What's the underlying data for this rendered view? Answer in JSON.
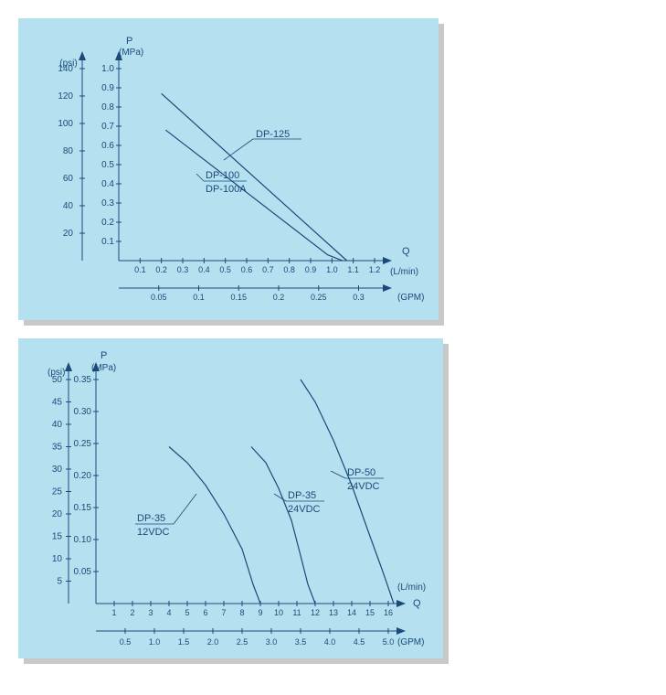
{
  "chart1": {
    "type": "line",
    "background_color": "#b4e0f0",
    "line_color": "#1a4a7a",
    "text_color": "#1a4a7a",
    "font_size_axis": 10,
    "font_size_label": 11,
    "y1_label_top": "(psi)",
    "y1_ticks": [
      20,
      40,
      60,
      80,
      100,
      120,
      140
    ],
    "y2_label_top1": "P",
    "y2_label_top2": "(MPa)",
    "y2_ticks": [
      0.1,
      0.2,
      0.3,
      0.4,
      0.5,
      0.6,
      0.7,
      0.8,
      0.9,
      1.0
    ],
    "x1_ticks": [
      0.1,
      0.2,
      0.3,
      0.4,
      0.5,
      0.6,
      0.7,
      0.8,
      0.9,
      1.0,
      1.1,
      1.2
    ],
    "x1_label_right1": "Q",
    "x1_label_right2": "(L/min)",
    "x2_ticks": [
      0.05,
      0.1,
      0.15,
      0.2,
      0.25,
      0.3
    ],
    "x2_label_right": "(GPM)",
    "series": [
      {
        "name": "DP-125",
        "label": "DP-125",
        "points": [
          [
            0.2,
            0.87
          ],
          [
            1.07,
            0.0
          ]
        ]
      },
      {
        "name": "DP-100",
        "label_top": "DP-100",
        "label_bottom": "DP-100A",
        "points": [
          [
            0.22,
            0.68
          ],
          [
            0.98,
            0.03
          ],
          [
            1.05,
            0.0
          ]
        ]
      }
    ],
    "y2_max": 1.0,
    "x1_max": 1.2
  },
  "chart2": {
    "type": "line",
    "background_color": "#b4e0f0",
    "line_color": "#1a4a7a",
    "text_color": "#1a4a7a",
    "font_size_axis": 10,
    "font_size_label": 11,
    "y1_label_top": "(psi)",
    "y1_ticks": [
      5,
      10,
      15,
      20,
      25,
      30,
      35,
      40,
      45,
      50
    ],
    "y2_label_top1": "P",
    "y2_label_top2": "(MPa)",
    "y2_ticks": [
      0.05,
      0.1,
      0.15,
      0.2,
      0.25,
      0.3,
      0.35
    ],
    "x1_ticks": [
      1,
      2,
      3,
      4,
      5,
      6,
      7,
      8,
      9,
      10,
      11,
      12,
      13,
      14,
      15,
      16
    ],
    "x1_label_right1": "Q",
    "x1_label_right2": "(L/min)",
    "x2_ticks": [
      0.5,
      1.0,
      1.5,
      2.0,
      2.5,
      3.0,
      3.5,
      4.0,
      4.5,
      5.0
    ],
    "x2_label_right": "(GPM)",
    "series": [
      {
        "name": "DP-35-12",
        "label_top": "DP-35",
        "label_bottom": "12VDC",
        "curve": [
          [
            4.0,
            0.245
          ],
          [
            5.0,
            0.22
          ],
          [
            6.0,
            0.185
          ],
          [
            7.0,
            0.14
          ],
          [
            8.0,
            0.085
          ],
          [
            8.6,
            0.03
          ],
          [
            9.0,
            0.0
          ]
        ]
      },
      {
        "name": "DP-35-24",
        "label_top": "DP-35",
        "label_bottom": "24VDC",
        "curve": [
          [
            8.5,
            0.245
          ],
          [
            9.3,
            0.22
          ],
          [
            10.0,
            0.18
          ],
          [
            10.7,
            0.13
          ],
          [
            11.2,
            0.075
          ],
          [
            11.6,
            0.03
          ],
          [
            12.0,
            0.0
          ]
        ]
      },
      {
        "name": "DP-50-24",
        "label_top": "DP-50",
        "label_bottom": "24VDC",
        "curve": [
          [
            11.2,
            0.35
          ],
          [
            12.0,
            0.315
          ],
          [
            13.0,
            0.255
          ],
          [
            14.0,
            0.185
          ],
          [
            15.0,
            0.105
          ],
          [
            15.7,
            0.05
          ],
          [
            16.3,
            0.0
          ]
        ]
      }
    ],
    "y2_max": 0.35,
    "x1_max": 16
  }
}
